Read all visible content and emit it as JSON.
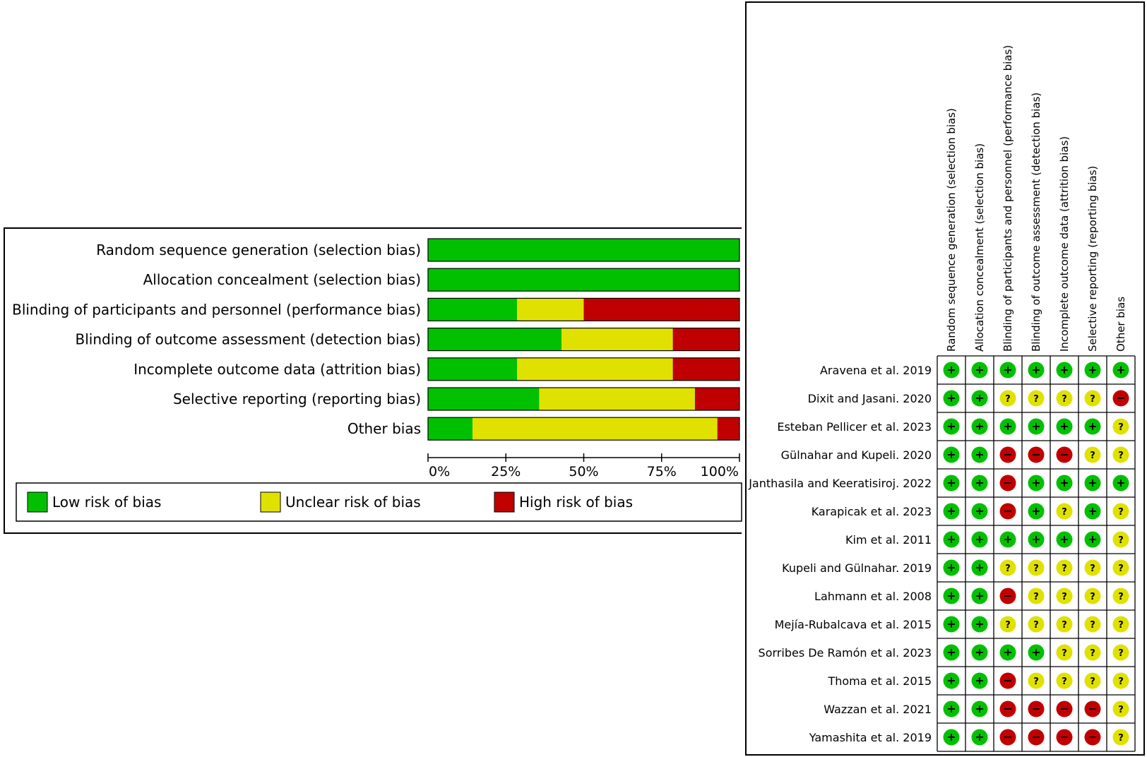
{
  "colors": {
    "low": "#00c000",
    "unclear": "#e1e100",
    "high": "#c00000"
  },
  "chart_data": [
    {
      "type": "bar",
      "orientation": "horizontal",
      "stacked": true,
      "percent": true,
      "categories": [
        "Random sequence generation (selection bias)",
        "Allocation concealment (selection bias)",
        "Blinding of participants and personnel (performance bias)",
        "Blinding of outcome assessment (detection bias)",
        "Incomplete outcome data (attrition bias)",
        "Selective reporting (reporting bias)",
        "Other bias"
      ],
      "series": [
        {
          "name": "Low risk of bias",
          "color": "#00c000",
          "values": [
            100,
            100,
            28.6,
            42.9,
            28.6,
            35.7,
            14.3
          ]
        },
        {
          "name": "Unclear risk of bias",
          "color": "#e1e100",
          "values": [
            0,
            0,
            21.4,
            35.7,
            50.0,
            50.0,
            78.6
          ]
        },
        {
          "name": "High risk of bias",
          "color": "#c00000",
          "values": [
            0,
            0,
            50.0,
            21.4,
            21.4,
            14.3,
            7.1
          ]
        }
      ],
      "xticks": [
        "0%",
        "25%",
        "50%",
        "75%",
        "100%"
      ],
      "xlim": [
        0,
        100
      ],
      "legend": {
        "placement": "bottom",
        "items": [
          {
            "label": "Low risk of bias",
            "color": "#00c000"
          },
          {
            "label": "Unclear risk of bias",
            "color": "#e1e100"
          },
          {
            "label": "High risk of bias",
            "color": "#c00000"
          }
        ]
      }
    },
    {
      "type": "table",
      "columns": [
        "Random sequence generation (selection bias)",
        "Allocation concealment (selection bias)",
        "Blinding of participants and personnel (performance bias)",
        "Blinding of outcome assessment (detection bias)",
        "Incomplete outcome data (attrition bias)",
        "Selective reporting (reporting bias)",
        "Other bias"
      ],
      "rows": [
        {
          "study": "Aravena et al. 2019",
          "ratings": [
            "+",
            "+",
            "+",
            "+",
            "+",
            "+",
            "+"
          ]
        },
        {
          "study": "Dixit and Jasani. 2020",
          "ratings": [
            "+",
            "+",
            "?",
            "?",
            "?",
            "?",
            "-"
          ]
        },
        {
          "study": "Esteban Pellicer et al. 2023",
          "ratings": [
            "+",
            "+",
            "+",
            "+",
            "+",
            "+",
            "?"
          ]
        },
        {
          "study": "Gülnahar and Kupeli. 2020",
          "ratings": [
            "+",
            "+",
            "-",
            "-",
            "-",
            "?",
            "?"
          ]
        },
        {
          "study": "Janthasila and Keeratisiroj. 2022",
          "ratings": [
            "+",
            "+",
            "-",
            "+",
            "+",
            "+",
            "+"
          ]
        },
        {
          "study": "Karapicak et al. 2023",
          "ratings": [
            "+",
            "+",
            "-",
            "+",
            "?",
            "+",
            "?"
          ]
        },
        {
          "study": "Kim et al. 2011",
          "ratings": [
            "+",
            "+",
            "+",
            "+",
            "+",
            "+",
            "?"
          ]
        },
        {
          "study": "Kupeli and Gülnahar. 2019",
          "ratings": [
            "+",
            "+",
            "?",
            "?",
            "?",
            "?",
            "?"
          ]
        },
        {
          "study": "Lahmann et al. 2008",
          "ratings": [
            "+",
            "+",
            "-",
            "?",
            "?",
            "?",
            "?"
          ]
        },
        {
          "study": "Mejía-Rubalcava et al. 2015",
          "ratings": [
            "+",
            "+",
            "?",
            "?",
            "?",
            "?",
            "?"
          ]
        },
        {
          "study": "Sorribes De Ramón et al. 2023",
          "ratings": [
            "+",
            "+",
            "+",
            "+",
            "?",
            "?",
            "?"
          ]
        },
        {
          "study": "Thoma  et al. 2015",
          "ratings": [
            "+",
            "+",
            "-",
            "?",
            "?",
            "?",
            "?"
          ]
        },
        {
          "study": "Wazzan et al. 2021",
          "ratings": [
            "+",
            "+",
            "-",
            "-",
            "-",
            "-",
            "?"
          ]
        },
        {
          "study": "Yamashita et al. 2019",
          "ratings": [
            "+",
            "+",
            "-",
            "-",
            "-",
            "-",
            "?"
          ]
        }
      ]
    }
  ]
}
